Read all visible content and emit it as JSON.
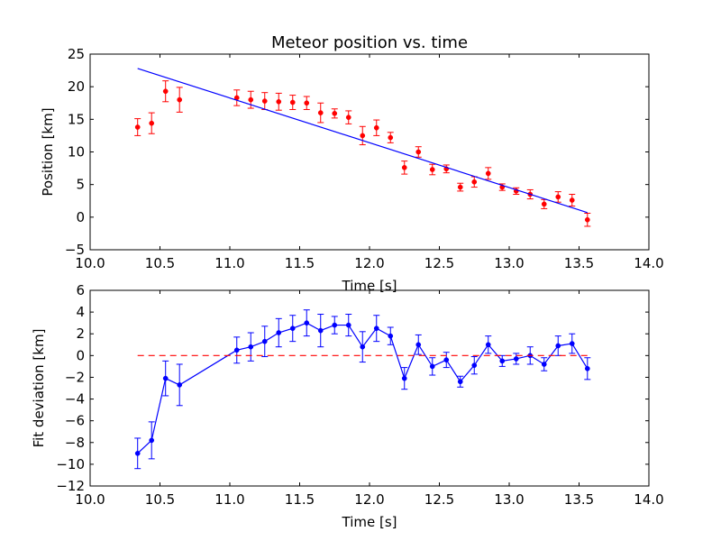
{
  "chart_data": [
    {
      "type": "scatter",
      "title": "Meteor position vs. time",
      "xlabel": "Time [s]",
      "ylabel": "Position [km]",
      "xlim": [
        10.0,
        14.0
      ],
      "ylim": [
        -5,
        25
      ],
      "xticks": [
        "10.0",
        "10.5",
        "11.0",
        "11.5",
        "12.0",
        "12.5",
        "13.0",
        "13.5",
        "14.0"
      ],
      "yticks": [
        "−5",
        "0",
        "5",
        "10",
        "15",
        "20",
        "25"
      ],
      "grid": false,
      "series": [
        {
          "kind": "points-with-errorbars",
          "color": "#ff0000",
          "x": [
            10.34,
            10.44,
            10.54,
            10.64,
            11.05,
            11.15,
            11.25,
            11.35,
            11.45,
            11.55,
            11.65,
            11.75,
            11.85,
            11.95,
            12.05,
            12.15,
            12.25,
            12.35,
            12.45,
            12.55,
            12.65,
            12.75,
            12.85,
            12.95,
            13.05,
            13.15,
            13.25,
            13.35,
            13.45,
            13.56
          ],
          "y": [
            13.8,
            14.4,
            19.3,
            18.0,
            18.3,
            18.0,
            17.8,
            17.7,
            17.6,
            17.5,
            16.0,
            15.9,
            15.3,
            12.5,
            13.7,
            12.2,
            7.6,
            10.0,
            7.3,
            7.4,
            4.6,
            5.4,
            6.7,
            4.6,
            4.0,
            3.5,
            2.0,
            3.1,
            2.6,
            -0.4
          ],
          "yerr": [
            1.3,
            1.6,
            1.6,
            1.9,
            1.2,
            1.3,
            1.3,
            1.3,
            1.1,
            1.0,
            1.5,
            0.7,
            1.0,
            1.4,
            1.2,
            0.8,
            1.0,
            0.8,
            0.8,
            0.6,
            0.6,
            0.8,
            0.9,
            0.5,
            0.5,
            0.7,
            0.7,
            0.8,
            0.9,
            1.0
          ]
        },
        {
          "kind": "fit-line",
          "color": "#0000ff",
          "x": [
            10.34,
            13.56
          ],
          "y": [
            22.8,
            0.7
          ]
        }
      ]
    },
    {
      "type": "line",
      "title": "",
      "xlabel": "Time [s]",
      "ylabel": "Fit deviation [km]",
      "xlim": [
        10.0,
        14.0
      ],
      "ylim": [
        -12,
        6
      ],
      "xticks": [
        "10.0",
        "10.5",
        "11.0",
        "11.5",
        "12.0",
        "12.5",
        "13.0",
        "13.5",
        "14.0"
      ],
      "yticks": [
        "−12",
        "−10",
        "−8",
        "−6",
        "−4",
        "−2",
        "0",
        "2",
        "4",
        "6"
      ],
      "grid": false,
      "series": [
        {
          "kind": "line-with-errorbars",
          "color": "#0000ff",
          "x": [
            10.34,
            10.44,
            10.54,
            10.64,
            11.05,
            11.15,
            11.25,
            11.35,
            11.45,
            11.55,
            11.65,
            11.75,
            11.85,
            11.95,
            12.05,
            12.15,
            12.25,
            12.35,
            12.45,
            12.55,
            12.65,
            12.75,
            12.85,
            12.95,
            13.05,
            13.15,
            13.25,
            13.35,
            13.45,
            13.56
          ],
          "y": [
            -9.0,
            -7.8,
            -2.1,
            -2.7,
            0.5,
            0.8,
            1.3,
            2.1,
            2.5,
            3.0,
            2.3,
            2.8,
            2.8,
            0.8,
            2.5,
            1.8,
            -2.1,
            1.0,
            -1.0,
            -0.4,
            -2.4,
            -0.9,
            1.0,
            -0.5,
            -0.3,
            0.0,
            -0.8,
            0.9,
            1.1,
            -1.2
          ],
          "yerr": [
            1.4,
            1.7,
            1.6,
            1.9,
            1.2,
            1.3,
            1.4,
            1.3,
            1.2,
            1.2,
            1.5,
            0.8,
            1.0,
            1.4,
            1.2,
            0.8,
            1.0,
            0.9,
            0.8,
            0.7,
            0.5,
            0.8,
            0.8,
            0.5,
            0.5,
            0.8,
            0.6,
            0.9,
            0.9,
            1.0
          ]
        },
        {
          "kind": "reference-line",
          "color": "#ff0000",
          "style": "dashed",
          "x": [
            10.34,
            13.56
          ],
          "y": [
            0,
            0
          ]
        }
      ]
    }
  ]
}
